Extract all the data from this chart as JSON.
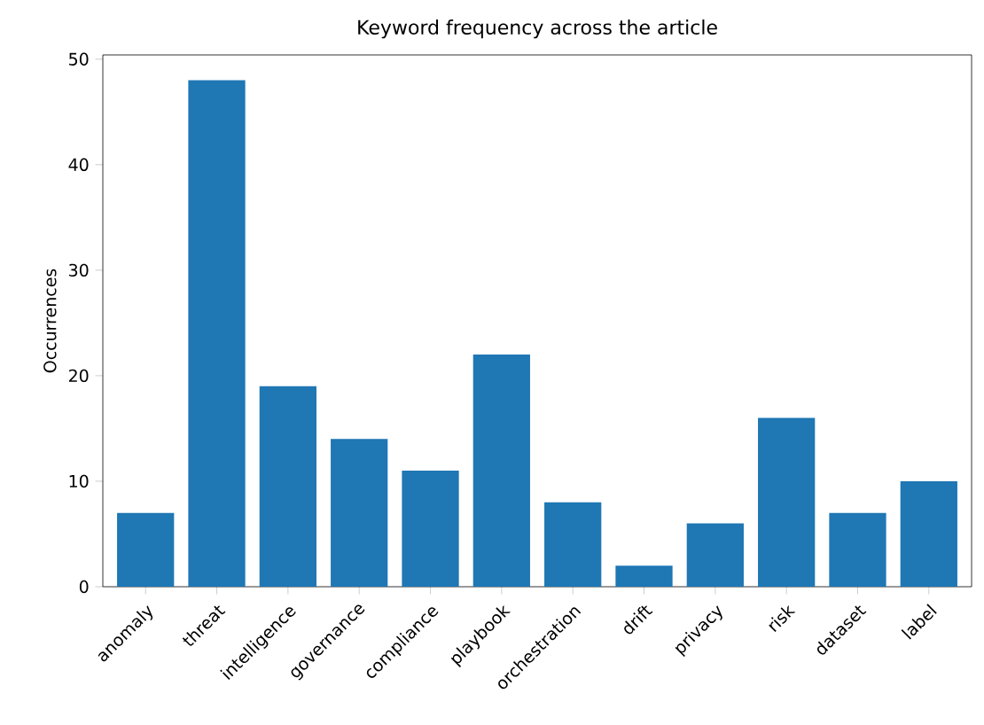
{
  "chart_data": {
    "type": "bar",
    "title": "Keyword frequency across the article",
    "ylabel": "Occurrences",
    "categories": [
      "anomaly",
      "threat",
      "intelligence",
      "governance",
      "compliance",
      "playbook",
      "orchestration",
      "drift",
      "privacy",
      "risk",
      "dataset",
      "label"
    ],
    "values": [
      7,
      48,
      19,
      14,
      11,
      22,
      8,
      2,
      6,
      16,
      7,
      10
    ],
    "color": "#1f77b4",
    "ylim": [
      0,
      50.4
    ],
    "yticks": [
      0,
      10,
      20,
      30,
      40,
      50
    ]
  }
}
